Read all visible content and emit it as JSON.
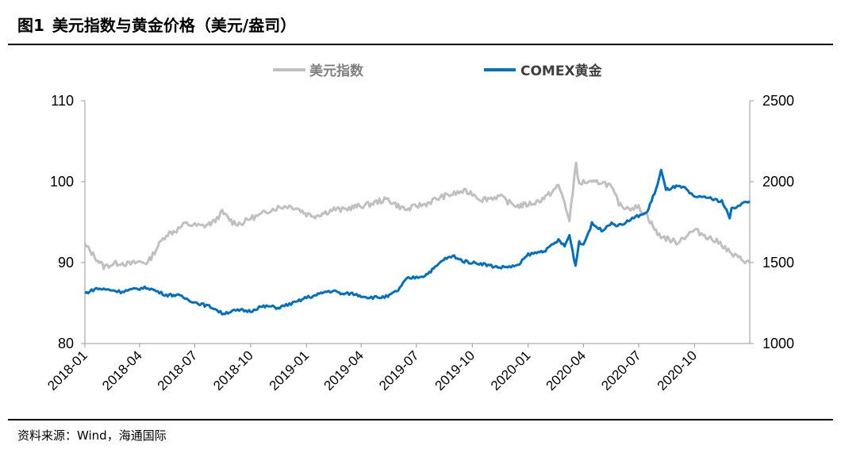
{
  "figure": {
    "number": "图1",
    "title": "美元指数与黄金价格（美元/盎司）",
    "source": "资料来源：Wind，海通国际"
  },
  "chart_data": {
    "type": "line",
    "x_start": "2018-01",
    "x_end": "2020-12",
    "x_ticks": [
      "2018-01",
      "2018-04",
      "2018-07",
      "2018-10",
      "2019-01",
      "2019-04",
      "2019-07",
      "2019-10",
      "2020-01",
      "2020-04",
      "2020-07",
      "2020-10"
    ],
    "y_left": {
      "ylim": [
        80,
        110
      ],
      "ticks": [
        "80",
        "90",
        "100",
        "110"
      ]
    },
    "y_right": {
      "ylim": [
        1000,
        2500
      ],
      "ticks": [
        "1000",
        "1500",
        "2000",
        "2500"
      ]
    },
    "grid": false,
    "legend": "top-center",
    "series": [
      {
        "name": "美元指数",
        "axis": "left",
        "color": "#c0c0c0",
        "points": [
          [
            "2018-01",
            92.2
          ],
          [
            "2018-01-20",
            90.5
          ],
          [
            "2018-02",
            89.5
          ],
          [
            "2018-02-15",
            89.8
          ],
          [
            "2018-03",
            90.0
          ],
          [
            "2018-03-15",
            89.8
          ],
          [
            "2018-04",
            90.1
          ],
          [
            "2018-04-15",
            90.0
          ],
          [
            "2018-05",
            92.0
          ],
          [
            "2018-05-15",
            93.5
          ],
          [
            "2018-06",
            94.0
          ],
          [
            "2018-06-15",
            94.8
          ],
          [
            "2018-07",
            94.6
          ],
          [
            "2018-07-15",
            94.5
          ],
          [
            "2018-08",
            95.0
          ],
          [
            "2018-08-15",
            96.2
          ],
          [
            "2018-09",
            95.0
          ],
          [
            "2018-09-15",
            94.8
          ],
          [
            "2018-10",
            95.5
          ],
          [
            "2018-10-15",
            95.8
          ],
          [
            "2018-11",
            96.5
          ],
          [
            "2018-11-15",
            96.8
          ],
          [
            "2018-12",
            97.0
          ],
          [
            "2018-12-15",
            96.8
          ],
          [
            "2019-01",
            96.0
          ],
          [
            "2019-01-15",
            95.8
          ],
          [
            "2019-02",
            96.2
          ],
          [
            "2019-02-15",
            96.6
          ],
          [
            "2019-03",
            96.5
          ],
          [
            "2019-03-15",
            96.8
          ],
          [
            "2019-04",
            97.0
          ],
          [
            "2019-04-15",
            97.2
          ],
          [
            "2019-05",
            97.6
          ],
          [
            "2019-05-15",
            97.8
          ],
          [
            "2019-06",
            97.0
          ],
          [
            "2019-06-15",
            96.5
          ],
          [
            "2019-07",
            97.0
          ],
          [
            "2019-07-15",
            97.2
          ],
          [
            "2019-08",
            97.8
          ],
          [
            "2019-08-15",
            98.2
          ],
          [
            "2019-09",
            98.5
          ],
          [
            "2019-09-15",
            98.8
          ],
          [
            "2019-10",
            98.6
          ],
          [
            "2019-10-15",
            97.8
          ],
          [
            "2019-11",
            98.0
          ],
          [
            "2019-11-15",
            98.2
          ],
          [
            "2019-12",
            97.4
          ],
          [
            "2019-12-15",
            97.0
          ],
          [
            "2020-01",
            97.2
          ],
          [
            "2020-01-15",
            97.5
          ],
          [
            "2020-02",
            98.2
          ],
          [
            "2020-02-20",
            99.5
          ],
          [
            "2020-03-01",
            97.5
          ],
          [
            "2020-03-09",
            95.0
          ],
          [
            "2020-03-20",
            102.5
          ],
          [
            "2020-03-25",
            99.5
          ],
          [
            "2020-04",
            100.0
          ],
          [
            "2020-04-15",
            99.8
          ],
          [
            "2020-05",
            100.0
          ],
          [
            "2020-05-15",
            99.5
          ],
          [
            "2020-06",
            97.0
          ],
          [
            "2020-06-15",
            96.8
          ],
          [
            "2020-07",
            96.8
          ],
          [
            "2020-07-15",
            95.8
          ],
          [
            "2020-08",
            93.5
          ],
          [
            "2020-08-15",
            93.0
          ],
          [
            "2020-09",
            92.5
          ],
          [
            "2020-09-15",
            93.2
          ],
          [
            "2020-10",
            94.0
          ],
          [
            "2020-10-15",
            93.5
          ],
          [
            "2020-11",
            92.8
          ],
          [
            "2020-11-15",
            92.3
          ],
          [
            "2020-12",
            91.0
          ],
          [
            "2020-12-15",
            90.5
          ],
          [
            "2020-12-31",
            90.0
          ]
        ]
      },
      {
        "name": "COMEX黄金",
        "axis": "right",
        "color": "#0070c0",
        "points": [
          [
            "2018-01",
            1310
          ],
          [
            "2018-01-20",
            1340
          ],
          [
            "2018-02",
            1335
          ],
          [
            "2018-02-15",
            1330
          ],
          [
            "2018-03",
            1320
          ],
          [
            "2018-03-15",
            1330
          ],
          [
            "2018-04",
            1340
          ],
          [
            "2018-04-15",
            1345
          ],
          [
            "2018-05",
            1320
          ],
          [
            "2018-05-15",
            1300
          ],
          [
            "2018-06",
            1300
          ],
          [
            "2018-06-15",
            1280
          ],
          [
            "2018-07",
            1255
          ],
          [
            "2018-07-15",
            1240
          ],
          [
            "2018-08",
            1220
          ],
          [
            "2018-08-15",
            1185
          ],
          [
            "2018-09",
            1200
          ],
          [
            "2018-09-15",
            1205
          ],
          [
            "2018-10",
            1200
          ],
          [
            "2018-10-15",
            1225
          ],
          [
            "2018-11",
            1230
          ],
          [
            "2018-11-15",
            1220
          ],
          [
            "2018-12",
            1240
          ],
          [
            "2018-12-15",
            1255
          ],
          [
            "2019-01",
            1285
          ],
          [
            "2019-01-15",
            1295
          ],
          [
            "2019-02",
            1320
          ],
          [
            "2019-02-15",
            1325
          ],
          [
            "2019-03",
            1305
          ],
          [
            "2019-03-15",
            1310
          ],
          [
            "2019-04",
            1295
          ],
          [
            "2019-04-15",
            1285
          ],
          [
            "2019-05",
            1285
          ],
          [
            "2019-05-15",
            1290
          ],
          [
            "2019-06",
            1330
          ],
          [
            "2019-06-15",
            1400
          ],
          [
            "2019-07",
            1410
          ],
          [
            "2019-07-15",
            1420
          ],
          [
            "2019-08",
            1470
          ],
          [
            "2019-08-15",
            1520
          ],
          [
            "2019-09",
            1540
          ],
          [
            "2019-09-15",
            1510
          ],
          [
            "2019-10",
            1500
          ],
          [
            "2019-10-15",
            1495
          ],
          [
            "2019-11",
            1480
          ],
          [
            "2019-11-15",
            1470
          ],
          [
            "2019-12",
            1475
          ],
          [
            "2019-12-15",
            1480
          ],
          [
            "2020-01",
            1550
          ],
          [
            "2020-01-15",
            1560
          ],
          [
            "2020-02",
            1580
          ],
          [
            "2020-02-20",
            1640
          ],
          [
            "2020-03-01",
            1600
          ],
          [
            "2020-03-09",
            1670
          ],
          [
            "2020-03-19",
            1480
          ],
          [
            "2020-03-25",
            1630
          ],
          [
            "2020-04",
            1610
          ],
          [
            "2020-04-15",
            1740
          ],
          [
            "2020-05",
            1700
          ],
          [
            "2020-05-15",
            1740
          ],
          [
            "2020-06",
            1730
          ],
          [
            "2020-06-15",
            1760
          ],
          [
            "2020-07",
            1790
          ],
          [
            "2020-07-15",
            1810
          ],
          [
            "2020-08",
            1980
          ],
          [
            "2020-08-07",
            2070
          ],
          [
            "2020-08-15",
            1950
          ],
          [
            "2020-09",
            1970
          ],
          [
            "2020-09-15",
            1960
          ],
          [
            "2020-10",
            1900
          ],
          [
            "2020-10-15",
            1910
          ],
          [
            "2020-11",
            1890
          ],
          [
            "2020-11-15",
            1880
          ],
          [
            "2020-11-28",
            1780
          ],
          [
            "2020-12",
            1830
          ],
          [
            "2020-12-15",
            1860
          ],
          [
            "2020-12-31",
            1880
          ]
        ]
      }
    ]
  }
}
